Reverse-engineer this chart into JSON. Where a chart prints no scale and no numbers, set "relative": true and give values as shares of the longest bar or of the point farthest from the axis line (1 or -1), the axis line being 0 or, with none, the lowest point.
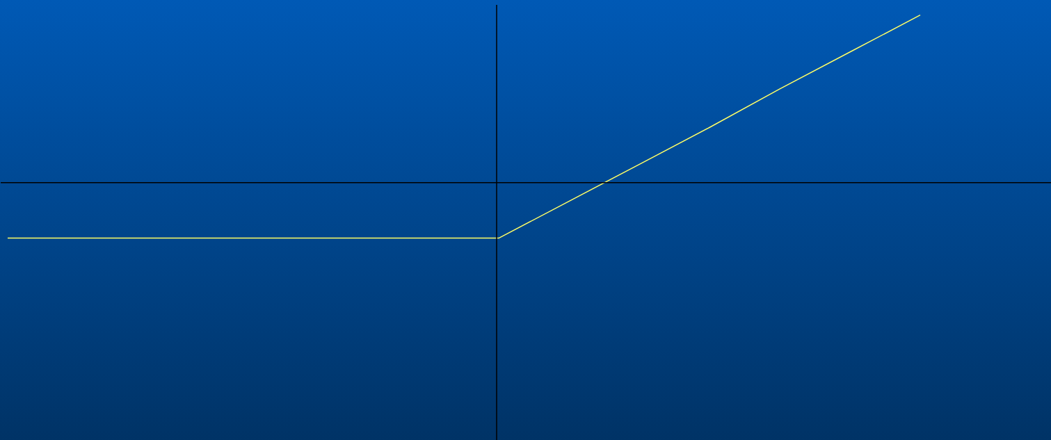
{
  "chart_data": {
    "type": "line",
    "relative": true,
    "categories": [
      null,
      null,
      null,
      null,
      null,
      null,
      null,
      null,
      null,
      null,
      null,
      null,
      null,
      null
    ],
    "series": [
      {
        "color": "#ffff66",
        "values": [
          -0.33,
          -0.33,
          -0.33,
          -0.33,
          -0.33,
          -0.33,
          -0.33,
          -0.33,
          -0.11,
          0.11,
          0.33,
          0.56,
          0.78,
          1
        ]
      }
    ],
    "grid": false,
    "legend": false,
    "marker": "none",
    "line_style": "solid"
  }
}
